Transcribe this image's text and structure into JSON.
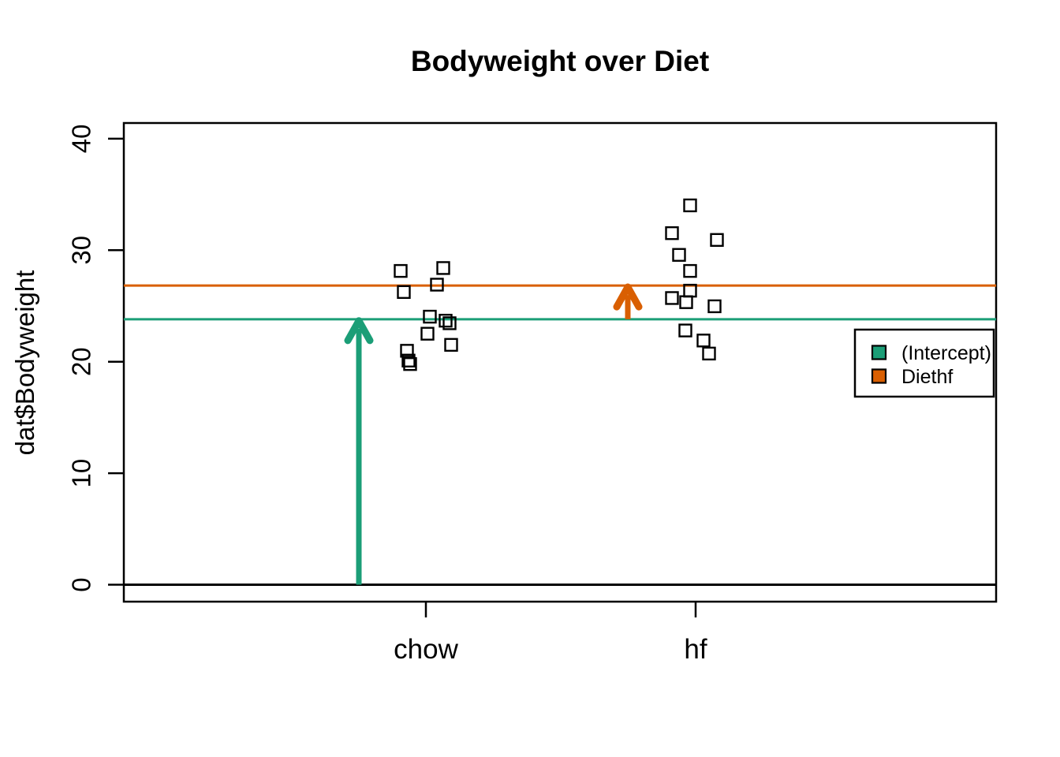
{
  "chart_data": {
    "type": "scatter",
    "title": "Bodyweight over Diet",
    "xlabel": "",
    "ylabel": "dat$Bodyweight",
    "categories": [
      "chow",
      "hf"
    ],
    "y_ticks": [
      0,
      10,
      20,
      30,
      40
    ],
    "ylim": [
      -1.5,
      41.4
    ],
    "grid": false,
    "point_symbol": "open-square",
    "points": [
      {
        "group": "chow",
        "value": 21.51,
        "dx": 32
      },
      {
        "group": "chow",
        "value": 28.14,
        "dx": -32
      },
      {
        "group": "chow",
        "value": 24.04,
        "dx": 5
      },
      {
        "group": "chow",
        "value": 23.45,
        "dx": 30
      },
      {
        "group": "chow",
        "value": 23.68,
        "dx": 25
      },
      {
        "group": "chow",
        "value": 19.79,
        "dx": -20
      },
      {
        "group": "chow",
        "value": 28.4,
        "dx": 22
      },
      {
        "group": "chow",
        "value": 20.98,
        "dx": -24
      },
      {
        "group": "chow",
        "value": 22.51,
        "dx": 2
      },
      {
        "group": "chow",
        "value": 20.1,
        "dx": -22
      },
      {
        "group": "chow",
        "value": 26.91,
        "dx": 14
      },
      {
        "group": "chow",
        "value": 26.25,
        "dx": -28
      },
      {
        "group": "hf",
        "value": 25.71,
        "dx": -30
      },
      {
        "group": "hf",
        "value": 26.37,
        "dx": -7
      },
      {
        "group": "hf",
        "value": 22.8,
        "dx": -13
      },
      {
        "group": "hf",
        "value": 25.34,
        "dx": -12
      },
      {
        "group": "hf",
        "value": 24.97,
        "dx": 24
      },
      {
        "group": "hf",
        "value": 28.14,
        "dx": -7
      },
      {
        "group": "hf",
        "value": 29.58,
        "dx": -21
      },
      {
        "group": "hf",
        "value": 30.92,
        "dx": 27
      },
      {
        "group": "hf",
        "value": 34.02,
        "dx": -7
      },
      {
        "group": "hf",
        "value": 21.9,
        "dx": 10
      },
      {
        "group": "hf",
        "value": 31.53,
        "dx": -30
      },
      {
        "group": "hf",
        "value": 20.73,
        "dx": 17
      }
    ],
    "hlines": [
      {
        "name": "zero-line",
        "value": 0,
        "color": "#000000",
        "width": 3
      },
      {
        "name": "intercept-line",
        "value": 23.81,
        "color": "#1B9E77",
        "width": 3
      },
      {
        "name": "diethf-line",
        "value": 26.83,
        "color": "#D95F02",
        "width": 3
      }
    ],
    "arrows": [
      {
        "name": "intercept-arrow",
        "at_category": "chow",
        "dx": -85,
        "from": 0,
        "to": 23.81,
        "color": "#1B9E77"
      },
      {
        "name": "diethf-arrow",
        "at_category": "hf",
        "dx": -86,
        "from": 23.81,
        "to": 26.83,
        "color": "#D95F02"
      }
    ],
    "legend": {
      "position": "right-middle",
      "entries": [
        {
          "label": "(Intercept)",
          "color": "#1B9E77"
        },
        {
          "label": "Diethf",
          "color": "#D95F02"
        }
      ]
    },
    "colors": {
      "intercept": "#1B9E77",
      "diethf": "#D95F02",
      "points": "#000000"
    }
  }
}
